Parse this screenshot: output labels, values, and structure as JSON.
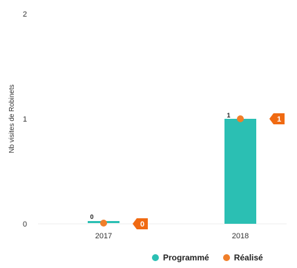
{
  "chart_data": {
    "type": "bar",
    "categories": [
      "2017",
      "2018"
    ],
    "series": [
      {
        "name": "Programmé",
        "kind": "bar",
        "color": "#2bbfb3",
        "values": [
          0,
          1
        ]
      },
      {
        "name": "Réalisé",
        "kind": "point",
        "color": "#f07f2a",
        "values": [
          0,
          1
        ]
      }
    ],
    "data_labels": [
      "0",
      "1"
    ],
    "callouts": [
      "0",
      "1"
    ],
    "callout_color": "#f06a12",
    "ylabel": "Nb visites de Robinets",
    "xlabel": "",
    "ylim": [
      0,
      2
    ],
    "yticks": [
      "0",
      "1",
      "2"
    ],
    "grid": false,
    "legend_position": "bottom-right"
  },
  "legend": {
    "items": [
      {
        "label": "Programmé",
        "color": "#2bbfb3"
      },
      {
        "label": "Réalisé",
        "color": "#f07f2a"
      }
    ]
  }
}
